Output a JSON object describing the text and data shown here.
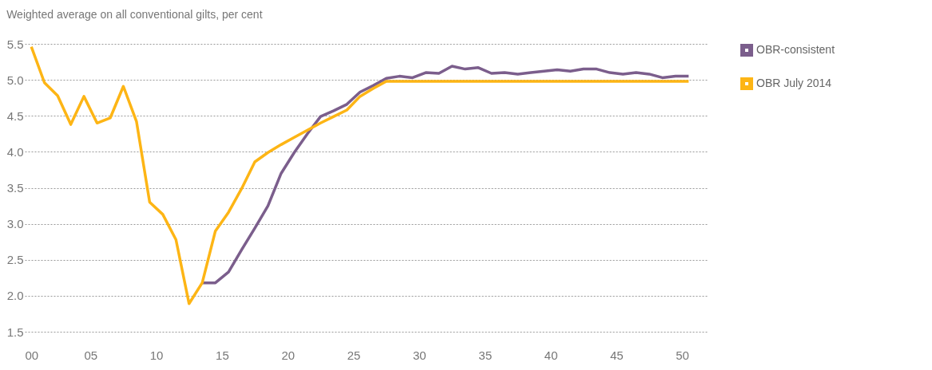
{
  "chart_data": {
    "type": "line",
    "ylabel": "Weighted average on all conventional gilts, per cent",
    "xlim": [
      0,
      52
    ],
    "xticks": [
      {
        "value": 0,
        "label": "00"
      },
      {
        "value": 5,
        "label": "05"
      },
      10,
      15,
      20,
      25,
      30,
      35,
      40,
      45,
      50
    ],
    "ylim": [
      1.5,
      5.5
    ],
    "yticks": [
      1.5,
      {
        "value": 2,
        "label": "2.0"
      },
      2.5,
      {
        "value": 3,
        "label": "3.0"
      },
      3.5,
      {
        "value": 4,
        "label": "4.0"
      },
      4.5,
      {
        "value": 5,
        "label": "5.0"
      },
      5.5
    ],
    "grid": "y",
    "legend": "top right",
    "line_style": "solid",
    "series": [
      {
        "name": "OBR-consistent",
        "color": "#7b5e8c",
        "x": [
          13.5,
          14.5,
          15.5,
          16.5,
          17.5,
          18.5,
          19.5,
          20.5,
          21.5,
          22.5,
          23.5,
          24.5,
          25.5,
          26.5,
          27.5,
          28.5,
          29.5,
          30.5,
          31.5,
          32.5,
          33.5,
          34.5,
          35.5,
          36.5,
          37.5,
          38.5,
          39.5,
          40.5,
          41.5,
          42.5,
          43.5,
          44.5,
          45.5,
          46.5,
          47.5,
          48.5,
          49.5,
          50.5
        ],
        "values": [
          2.18,
          2.18,
          2.33,
          2.64,
          2.94,
          3.25,
          3.7,
          3.99,
          4.25,
          4.49,
          4.57,
          4.66,
          4.83,
          4.92,
          5.02,
          5.05,
          5.03,
          5.1,
          5.09,
          5.19,
          5.15,
          5.17,
          5.09,
          5.1,
          5.08,
          5.1,
          5.12,
          5.14,
          5.12,
          5.15,
          5.15,
          5.1,
          5.08,
          5.1,
          5.08,
          5.03,
          5.05,
          5.05
        ]
      },
      {
        "name": "OBR July 2014",
        "color": "#fdb515",
        "x": [
          0.5,
          1.5,
          2.5,
          3.5,
          4.5,
          5.5,
          6.5,
          7.5,
          8.5,
          9.5,
          10.5,
          11.5,
          12.5,
          13.5,
          14.5,
          15.5,
          16.5,
          17.5,
          18.5,
          19.5,
          20.5,
          21.5,
          22.5,
          23.5,
          24.5,
          25.5,
          26.5,
          27.5,
          28.5,
          29.5,
          30.5,
          31.5,
          32.5,
          33.5,
          34.5,
          35.5,
          36.5,
          37.5,
          38.5,
          39.5,
          40.5,
          41.5,
          42.5,
          43.5,
          44.5,
          45.5,
          46.5,
          47.5,
          48.5,
          49.5,
          50.5
        ],
        "values": [
          5.46,
          4.96,
          4.78,
          4.38,
          4.77,
          4.4,
          4.47,
          4.91,
          4.42,
          3.3,
          3.13,
          2.78,
          1.89,
          2.18,
          2.9,
          3.16,
          3.49,
          3.86,
          3.99,
          4.1,
          4.2,
          4.3,
          4.4,
          4.49,
          4.58,
          4.77,
          4.88,
          4.98,
          4.98,
          4.98,
          4.98,
          4.98,
          4.98,
          4.98,
          4.98,
          4.98,
          4.98,
          4.98,
          4.98,
          4.98,
          4.98,
          4.98,
          4.98,
          4.98,
          4.98,
          4.98,
          4.98,
          4.98,
          4.98,
          4.98,
          4.98
        ]
      }
    ]
  }
}
